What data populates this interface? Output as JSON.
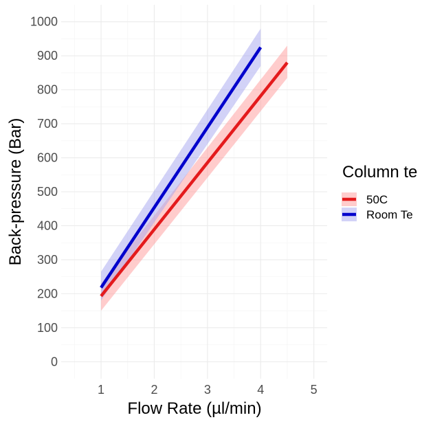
{
  "chart_data": {
    "type": "line",
    "xlabel": "Flow Rate (µl/min)",
    "ylabel": "Back-pressure (Bar)",
    "xlim": [
      0.25,
      5.25
    ],
    "ylim": [
      -50,
      1050
    ],
    "xticks": [
      1,
      2,
      3,
      4,
      5
    ],
    "yticks": [
      0,
      100,
      200,
      300,
      400,
      500,
      600,
      700,
      800,
      900,
      1000
    ],
    "grid": true,
    "legend": {
      "title": "Column te",
      "position": "right"
    },
    "series": [
      {
        "name": "50C",
        "color": "#e41a1c",
        "ribbon_color": "#ff9a9a",
        "x": [
          1,
          4.5
        ],
        "y": [
          193,
          880
        ],
        "ci_low": [
          150,
          835
        ],
        "ci_high": [
          230,
          930
        ]
      },
      {
        "name": "Room Te",
        "color": "#0000cc",
        "ribbon_color": "#a6a6f0",
        "x": [
          1,
          4
        ],
        "y": [
          218,
          925
        ],
        "ci_low": [
          180,
          870
        ],
        "ci_high": [
          265,
          980
        ]
      }
    ]
  }
}
